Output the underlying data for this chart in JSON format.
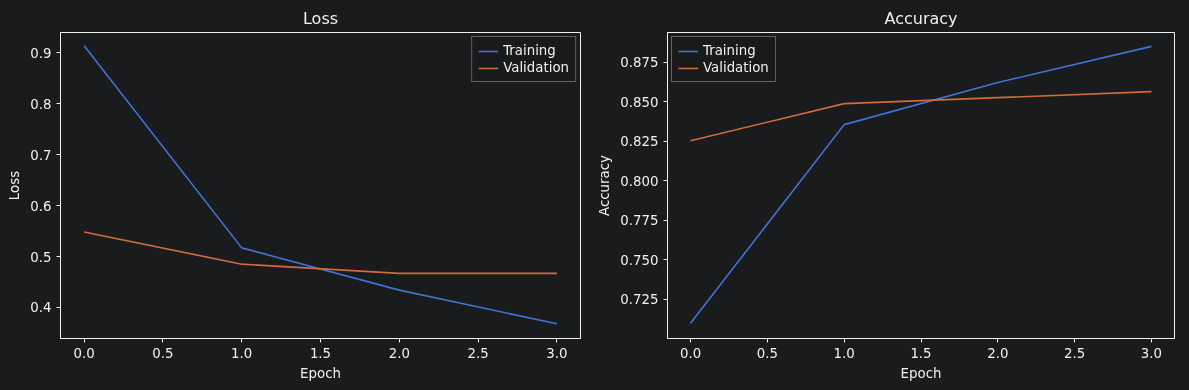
{
  "chart_data": [
    {
      "type": "line",
      "title": "Loss",
      "xlabel": "Epoch",
      "ylabel": "Loss",
      "x": [
        0,
        1,
        2,
        3
      ],
      "series": [
        {
          "name": "Training",
          "color": "#3f74d6",
          "values": [
            0.914,
            0.517,
            0.434,
            0.368
          ]
        },
        {
          "name": "Validation",
          "color": "#d06b3c",
          "values": [
            0.548,
            0.485,
            0.467,
            0.467
          ]
        }
      ],
      "xlim": [
        -0.15,
        3.15
      ],
      "ylim": [
        0.339,
        0.94
      ],
      "xticks": [
        {
          "value": 0,
          "label": "0.0"
        },
        0.5,
        {
          "value": 1,
          "label": "1.0"
        },
        1.5,
        {
          "value": 2,
          "label": "2.0"
        },
        2.5,
        {
          "value": 3,
          "label": "3.0"
        }
      ],
      "yticks": [
        0.4,
        0.5,
        0.6,
        0.7,
        0.8,
        0.9
      ],
      "legend": "top right",
      "grid": false
    },
    {
      "type": "line",
      "title": "Accuracy",
      "xlabel": "Epoch",
      "ylabel": "Accuracy",
      "x": [
        0,
        1,
        2,
        3
      ],
      "series": [
        {
          "name": "Training",
          "color": "#3f74d6",
          "values": [
            0.7097,
            0.8356,
            0.8623,
            0.8852
          ]
        },
        {
          "name": "Validation",
          "color": "#d06b3c",
          "values": [
            0.8254,
            0.8489,
            0.8527,
            0.8565
          ]
        }
      ],
      "xlim": [
        -0.15,
        3.15
      ],
      "ylim": [
        0.7,
        0.894
      ],
      "xticks": [
        {
          "value": 0,
          "label": "0.0"
        },
        0.5,
        {
          "value": 1,
          "label": "1.0"
        },
        1.5,
        {
          "value": 2,
          "label": "2.0"
        },
        2.5,
        {
          "value": 3,
          "label": "3.0"
        }
      ],
      "yticks": [
        {
          "value": 0.725,
          "label": "0.725"
        },
        {
          "value": 0.75,
          "label": "0.750"
        },
        {
          "value": 0.775,
          "label": "0.775"
        },
        {
          "value": 0.8,
          "label": "0.800"
        },
        {
          "value": 0.825,
          "label": "0.825"
        },
        {
          "value": 0.85,
          "label": "0.850"
        },
        {
          "value": 0.875,
          "label": "0.875"
        }
      ],
      "legend": "top left",
      "grid": false
    }
  ]
}
